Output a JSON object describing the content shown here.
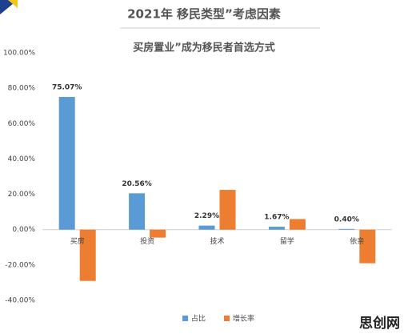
{
  "chart_data": {
    "type": "bar",
    "title": "2021年 移民类型”考虑因素",
    "subtitle": "买房置业”成为移民者首选方式",
    "watermark": "思创网",
    "categories": [
      "买房",
      "投资",
      "技术",
      "留学",
      "依亲"
    ],
    "series": [
      {
        "name": "占比",
        "color": "#5b9bd5",
        "values": [
          75.07,
          20.56,
          2.29,
          1.67,
          0.4
        ],
        "value_labels": [
          "75.07%",
          "20.56%",
          "2.29%",
          "1.67%",
          "0.40%"
        ]
      },
      {
        "name": "增长率",
        "color": "#ed7d31",
        "values": [
          -29,
          -4.5,
          22.5,
          6,
          -19
        ]
      }
    ],
    "ylim": [
      -40,
      100
    ],
    "yticks": [
      {
        "value": -40,
        "label": "-40.00%"
      },
      {
        "value": -20,
        "label": "-20.00%"
      },
      {
        "value": 0,
        "label": "0.00%"
      },
      {
        "value": 20,
        "label": "20.00%"
      },
      {
        "value": 40,
        "label": "40.00%"
      },
      {
        "value": 60,
        "label": "60.00%"
      },
      {
        "value": 80,
        "label": "80.00%"
      },
      {
        "value": 100,
        "label": "100.00%"
      }
    ],
    "grid": false,
    "legend": "bottom"
  }
}
